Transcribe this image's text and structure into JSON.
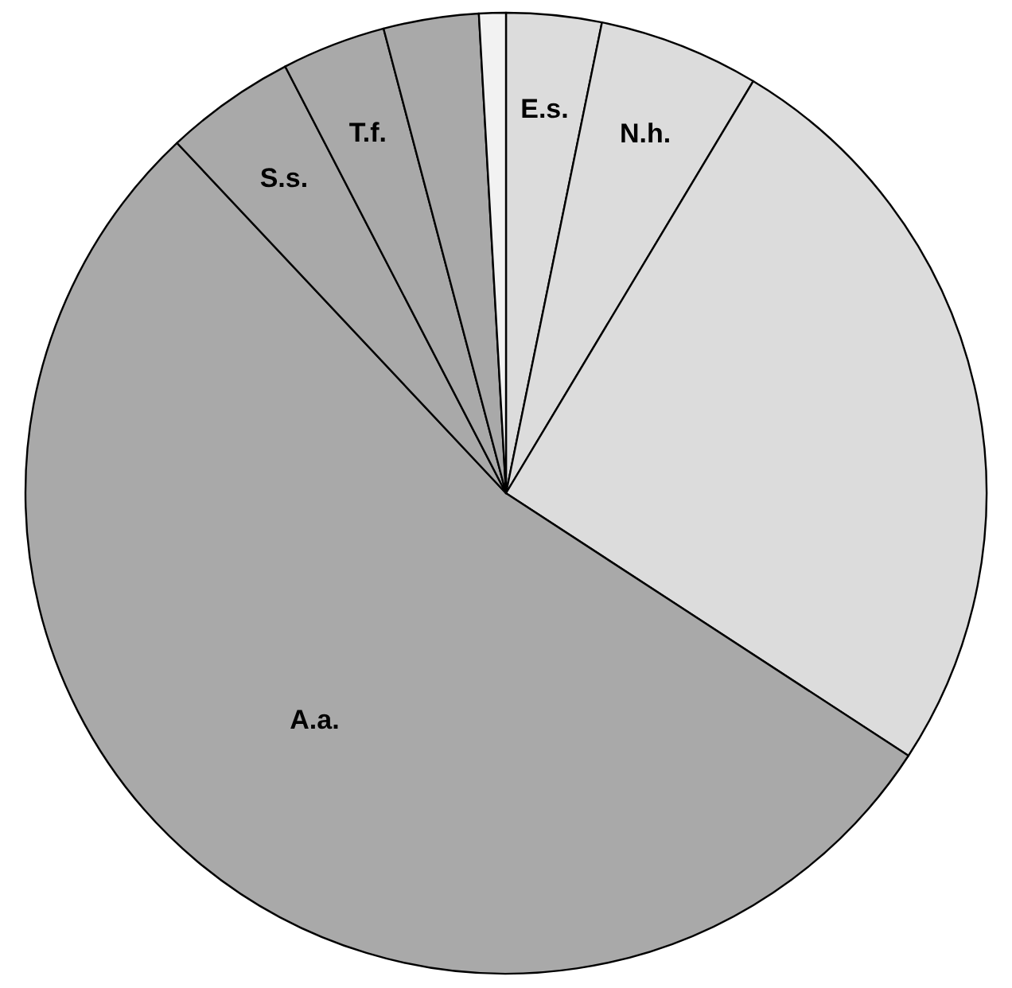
{
  "chart_data": {
    "type": "pie",
    "categories": [
      "E.s.",
      "N.h.",
      null,
      "A.a.",
      "S.s.",
      "T.f.",
      null,
      null
    ],
    "values": [
      3.2,
      5.4,
      25.6,
      53.8,
      4.4,
      3.5,
      3.2,
      0.9
    ],
    "colors": [
      "#dcdcdc",
      "#dcdcdc",
      "#dcdcdc",
      "#a9a9a9",
      "#a9a9a9",
      "#a9a9a9",
      "#a9a9a9",
      "#f2f2f2"
    ]
  }
}
